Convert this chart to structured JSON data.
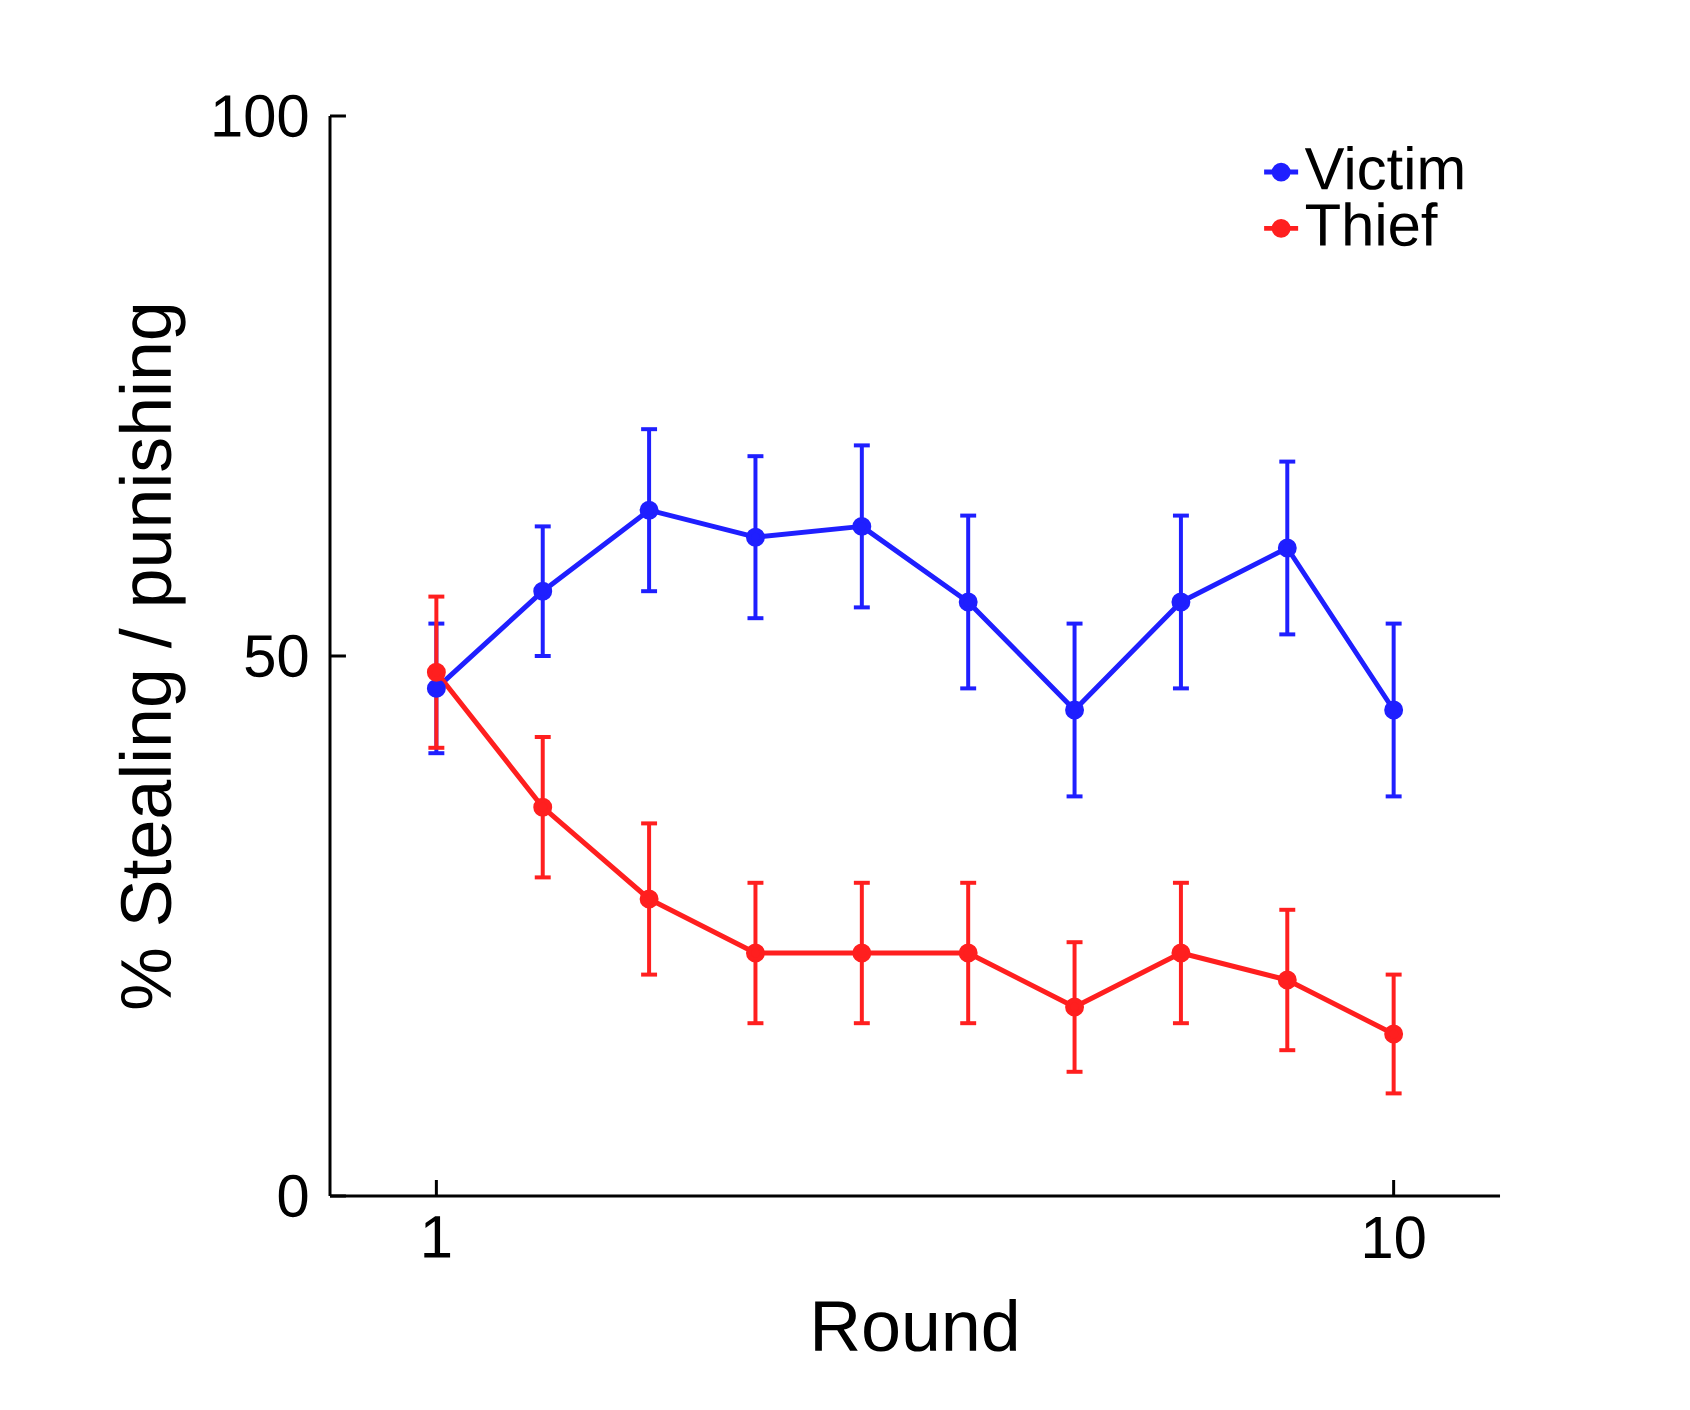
{
  "chart_data": {
    "type": "line",
    "xlabel": "Round",
    "ylabel": "% Stealing / punishing",
    "x": [
      1,
      2,
      3,
      4,
      5,
      6,
      7,
      8,
      9,
      10
    ],
    "xlim": [
      0,
      11
    ],
    "xticks": [
      1,
      10
    ],
    "ylim": [
      0,
      100
    ],
    "yticks": [
      0,
      50,
      100
    ],
    "series": [
      {
        "name": "Victim",
        "color": "#1f1fff",
        "values": [
          47,
          56,
          63.5,
          61,
          62,
          55,
          45,
          55,
          60,
          45
        ],
        "errors": [
          6,
          6,
          7.5,
          7.5,
          7.5,
          8,
          8,
          8,
          8,
          8
        ]
      },
      {
        "name": "Thief",
        "color": "#ff1f1f",
        "values": [
          48.5,
          36,
          27.5,
          22.5,
          22.5,
          22.5,
          17.5,
          22.5,
          20,
          15
        ],
        "errors": [
          7,
          6.5,
          7,
          6.5,
          6.5,
          6.5,
          6,
          6.5,
          6.5,
          5.5
        ]
      }
    ],
    "marker": "circle",
    "legend": "top right",
    "grid": false
  }
}
